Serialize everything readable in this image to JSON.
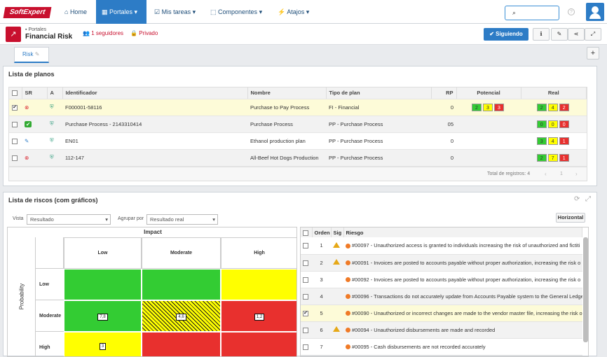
{
  "nav": {
    "logo": "SoftExpert",
    "home": "Home",
    "portales": "Portales",
    "tareas": "Mis tareas",
    "componentes": "Componentes",
    "atajos": "Atajos"
  },
  "header": {
    "subtitle": "Portales",
    "title": "Financial Risk",
    "followers": "1 seguidores",
    "privacy": "Privado",
    "follow_btn": "Siguiendo"
  },
  "tab": {
    "label": "Risk"
  },
  "plans": {
    "title": "Lista de planos",
    "columns": {
      "sr": "SR",
      "a": "A",
      "id": "Identificador",
      "name": "Nombre",
      "type": "Tipo de plan",
      "rp": "RP",
      "pot": "Potencial",
      "real": "Real"
    },
    "rows": [
      {
        "id": "F000001-58116",
        "name": "Purchase to Pay Process",
        "type": "FI - Financial",
        "rp": "0",
        "pot": [
          "2",
          "3",
          "3"
        ],
        "real": [
          "2",
          "4",
          "2"
        ]
      },
      {
        "id": "Purchase Process - 2143310414",
        "name": "Purchase Process",
        "type": "PP - Purchase Process",
        "rp": "05",
        "pot": [],
        "real": [
          "0",
          "0",
          "0"
        ]
      },
      {
        "id": "EN01",
        "name": "Ethanol production plan",
        "type": "PP - Purchase Process",
        "rp": "0",
        "pot": [],
        "real": [
          "3",
          "4",
          "1"
        ]
      },
      {
        "id": "112-147",
        "name": "All-Beef Hot Dogs Production",
        "type": "PP - Purchase Process",
        "rp": "0",
        "pot": [],
        "real": [
          "2",
          "7",
          "1"
        ]
      }
    ],
    "footer": "Total de registros: 4",
    "page": "1"
  },
  "risks": {
    "title": "Lista de riscos (com gráficos)",
    "vista_label": "Vista",
    "vista_value": "Resultado",
    "agrupar_label": "Agrupar por",
    "agrupar_value": "Resultado real",
    "horizontal_btn": "Horizontal",
    "matrix": {
      "impact": "Impact",
      "probability": "Probability",
      "cols": [
        "Low",
        "Moderate",
        "High"
      ],
      "rows": [
        "Low",
        "Moderate",
        "High"
      ],
      "marks": {
        "m1": "7,8",
        "m2": "4,6",
        "m3": "1,2",
        "h1": "3"
      }
    },
    "columns": {
      "orden": "Orden",
      "sig": "Sig",
      "riesgo": "Riesgo"
    },
    "items": [
      {
        "n": "1",
        "text": "#00097 - Unauthorized access is granted to individuals increasing the risk of unauthorized and fictiti"
      },
      {
        "n": "2",
        "text": "#00091 - Invoices are posted to accounts payable without proper authorization, increasing the risk o"
      },
      {
        "n": "3",
        "text": "#00092 - Invoices are posted to accounts payable without proper authorization, increasing the risk o"
      },
      {
        "n": "4",
        "text": "#00096 - Transactions do not accurately update from Accounts Payable system to the General Ledge"
      },
      {
        "n": "5",
        "text": "#00090 - Unauthorized or incorrect changes are made to the vendor master file, increasing the risk o"
      },
      {
        "n": "6",
        "text": "#00094 - Unauthorized disbursements are made and recorded"
      },
      {
        "n": "7",
        "text": "#00095 - Cash disbursements are not recorded accurately"
      }
    ]
  }
}
